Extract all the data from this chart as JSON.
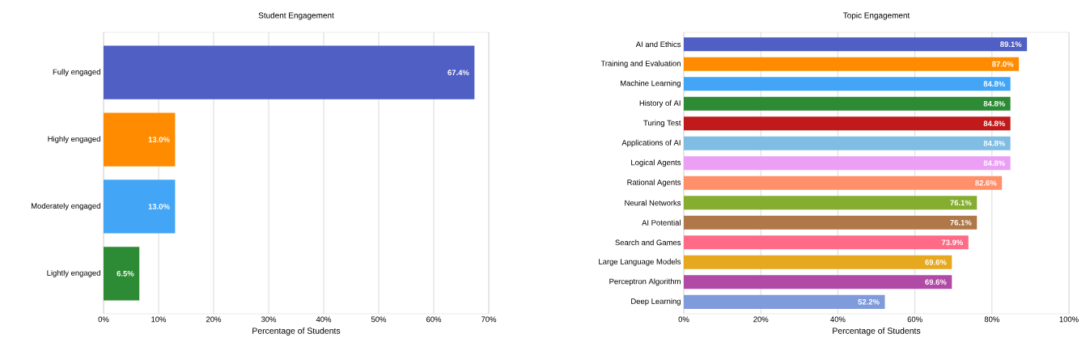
{
  "chart_data": [
    {
      "type": "bar",
      "orientation": "horizontal",
      "title": "Student Engagement",
      "xlabel": "Percentage of Students",
      "categories": [
        "Fully engaged",
        "Highly engaged",
        "Moderately engaged",
        "Lightly engaged"
      ],
      "values": [
        67.4,
        13.0,
        13.0,
        6.5
      ],
      "value_labels": [
        "67.4%",
        "13.0%",
        "13.0%",
        "6.5%"
      ],
      "colors": [
        "#4f5fc4",
        "#ff8c00",
        "#42a5f5",
        "#2e8b35"
      ],
      "xlim": [
        0,
        70
      ],
      "xticks": [
        {
          "value": 0,
          "label": "0%"
        },
        {
          "value": 10,
          "label": "10%"
        },
        {
          "value": 20,
          "label": "20%"
        },
        {
          "value": 30,
          "label": "30%"
        },
        {
          "value": 40,
          "label": "40%"
        },
        {
          "value": 50,
          "label": "50%"
        },
        {
          "value": 60,
          "label": "60%"
        },
        {
          "value": 70,
          "label": "70%"
        }
      ],
      "grid": "x"
    },
    {
      "type": "bar",
      "orientation": "horizontal",
      "title": "Topic Engagement",
      "xlabel": "Percentage of Students",
      "categories": [
        "AI and Ethics",
        "Training and Evaluation",
        "Machine Learning",
        "History of AI",
        "Turing Test",
        "Applications of AI",
        "Logical Agents",
        "Rational Agents",
        "Neural Networks",
        "AI Potential",
        "Search and Games",
        "Large Language Models",
        "Perceptron Algorithm",
        "Deep Learning"
      ],
      "values": [
        89.1,
        87.0,
        84.8,
        84.8,
        84.8,
        84.8,
        84.8,
        82.6,
        76.1,
        76.1,
        73.9,
        69.6,
        69.6,
        52.2
      ],
      "value_labels": [
        "89.1%",
        "87.0%",
        "84.8%",
        "84.8%",
        "84.8%",
        "84.8%",
        "84.8%",
        "82.6%",
        "76.1%",
        "76.1%",
        "73.9%",
        "69.6%",
        "69.6%",
        "52.2%"
      ],
      "colors": [
        "#4f5fc4",
        "#ff8c00",
        "#42a5f5",
        "#2e8b35",
        "#c01a1a",
        "#80bde3",
        "#eba0f5",
        "#ff9069",
        "#85ad2f",
        "#b07848",
        "#ff6b86",
        "#e6a81e",
        "#b04aa6",
        "#7f9bdb"
      ],
      "xlim": [
        0,
        100
      ],
      "xticks": [
        {
          "value": 0,
          "label": "0%"
        },
        {
          "value": 20,
          "label": "20%"
        },
        {
          "value": 40,
          "label": "40%"
        },
        {
          "value": 60,
          "label": "60%"
        },
        {
          "value": 80,
          "label": "80%"
        },
        {
          "value": 100,
          "label": "100%"
        }
      ],
      "grid": "x"
    }
  ]
}
